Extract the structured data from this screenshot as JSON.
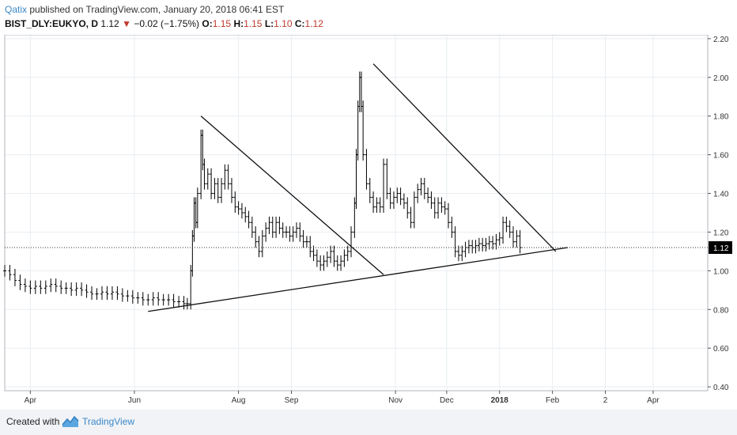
{
  "header": {
    "user": "Qatix",
    "published": "published on TradingView.com, January 20, 2018 06:41 EST",
    "symbol": "BIST_DLY:EUKYO, D",
    "last": "1.12",
    "change_arrow": "▼",
    "change": "−0.02 (−1.75%)",
    "o_label": "O:",
    "o_val": "1.15",
    "h_label": "H:",
    "h_val": "1.15",
    "l_label": "L:",
    "l_val": "1.10",
    "c_label": "C:",
    "c_val": "1.12"
  },
  "footer": {
    "created": "Created with",
    "brand": "TradingView",
    "logo_icon": "tradingview-logo-icon"
  },
  "colors": {
    "accent": "#3a86c8",
    "down": "#c0392b",
    "bars": "#000000",
    "grid": "#e9edf2"
  },
  "chart_data": {
    "type": "ohlc",
    "ylim": [
      0.38,
      2.22
    ],
    "y_ticks": [
      "2.20",
      "2.00",
      "1.80",
      "1.60",
      "1.40",
      "1.20",
      "1.12",
      "1.00",
      "0.80",
      "0.60",
      "0.40"
    ],
    "x_ticks": [
      {
        "label": "Apr",
        "d": 15
      },
      {
        "label": "Jun",
        "d": 76
      },
      {
        "label": "Aug",
        "d": 137
      },
      {
        "label": "Sep",
        "d": 168
      },
      {
        "label": "Nov",
        "d": 229
      },
      {
        "label": "Dec",
        "d": 259
      },
      {
        "label": "2018",
        "d": 290
      },
      {
        "label": "Feb",
        "d": 321
      },
      {
        "label": "2",
        "d": 352
      },
      {
        "label": "Apr",
        "d": 380
      }
    ],
    "x_domain": [
      0,
      412
    ],
    "last_price": 1.12,
    "last_label": "1.12",
    "trendlines": [
      {
        "name": "support",
        "x1": 84,
        "y1": 0.79,
        "x2": 330,
        "y2": 1.12
      },
      {
        "name": "resistance-1",
        "x1": 115,
        "y1": 1.8,
        "x2": 222,
        "y2": 0.98
      },
      {
        "name": "resistance-2",
        "x1": 216,
        "y1": 2.07,
        "x2": 323,
        "y2": 1.1
      }
    ],
    "series_note": "daily OHLC, approx. closes",
    "closes": [
      {
        "d": 0,
        "c": 1.0
      },
      {
        "d": 3,
        "c": 0.98
      },
      {
        "d": 6,
        "c": 0.95
      },
      {
        "d": 9,
        "c": 0.93
      },
      {
        "d": 12,
        "c": 0.92
      },
      {
        "d": 15,
        "c": 0.91
      },
      {
        "d": 18,
        "c": 0.92
      },
      {
        "d": 21,
        "c": 0.91
      },
      {
        "d": 24,
        "c": 0.92
      },
      {
        "d": 27,
        "c": 0.93
      },
      {
        "d": 30,
        "c": 0.92
      },
      {
        "d": 33,
        "c": 0.91
      },
      {
        "d": 36,
        "c": 0.91
      },
      {
        "d": 39,
        "c": 0.9
      },
      {
        "d": 42,
        "c": 0.91
      },
      {
        "d": 45,
        "c": 0.9
      },
      {
        "d": 48,
        "c": 0.89
      },
      {
        "d": 51,
        "c": 0.88
      },
      {
        "d": 54,
        "c": 0.88
      },
      {
        "d": 57,
        "c": 0.89
      },
      {
        "d": 60,
        "c": 0.88
      },
      {
        "d": 63,
        "c": 0.89
      },
      {
        "d": 66,
        "c": 0.88
      },
      {
        "d": 69,
        "c": 0.87
      },
      {
        "d": 72,
        "c": 0.87
      },
      {
        "d": 75,
        "c": 0.86
      },
      {
        "d": 78,
        "c": 0.86
      },
      {
        "d": 81,
        "c": 0.85
      },
      {
        "d": 84,
        "c": 0.85
      },
      {
        "d": 87,
        "c": 0.86
      },
      {
        "d": 90,
        "c": 0.85
      },
      {
        "d": 93,
        "c": 0.85
      },
      {
        "d": 96,
        "c": 0.85
      },
      {
        "d": 99,
        "c": 0.84
      },
      {
        "d": 102,
        "c": 0.84
      },
      {
        "d": 105,
        "c": 0.83
      },
      {
        "d": 107,
        "c": 0.83
      },
      {
        "d": 109,
        "c": 1.0
      },
      {
        "d": 110,
        "c": 1.18
      },
      {
        "d": 111,
        "c": 1.35
      },
      {
        "d": 112,
        "c": 1.25
      },
      {
        "d": 113,
        "c": 1.4
      },
      {
        "d": 115,
        "c": 1.7
      },
      {
        "d": 116,
        "c": 1.55
      },
      {
        "d": 117,
        "c": 1.45
      },
      {
        "d": 119,
        "c": 1.5
      },
      {
        "d": 121,
        "c": 1.4
      },
      {
        "d": 123,
        "c": 1.45
      },
      {
        "d": 125,
        "c": 1.38
      },
      {
        "d": 127,
        "c": 1.45
      },
      {
        "d": 129,
        "c": 1.52
      },
      {
        "d": 131,
        "c": 1.45
      },
      {
        "d": 133,
        "c": 1.38
      },
      {
        "d": 135,
        "c": 1.33
      },
      {
        "d": 137,
        "c": 1.32
      },
      {
        "d": 139,
        "c": 1.3
      },
      {
        "d": 141,
        "c": 1.28
      },
      {
        "d": 143,
        "c": 1.25
      },
      {
        "d": 145,
        "c": 1.2
      },
      {
        "d": 147,
        "c": 1.15
      },
      {
        "d": 149,
        "c": 1.1
      },
      {
        "d": 151,
        "c": 1.18
      },
      {
        "d": 153,
        "c": 1.22
      },
      {
        "d": 155,
        "c": 1.25
      },
      {
        "d": 157,
        "c": 1.2
      },
      {
        "d": 159,
        "c": 1.25
      },
      {
        "d": 161,
        "c": 1.22
      },
      {
        "d": 163,
        "c": 1.2
      },
      {
        "d": 165,
        "c": 1.2
      },
      {
        "d": 167,
        "c": 1.18
      },
      {
        "d": 169,
        "c": 1.2
      },
      {
        "d": 171,
        "c": 1.22
      },
      {
        "d": 173,
        "c": 1.18
      },
      {
        "d": 175,
        "c": 1.15
      },
      {
        "d": 177,
        "c": 1.15
      },
      {
        "d": 179,
        "c": 1.1
      },
      {
        "d": 181,
        "c": 1.08
      },
      {
        "d": 183,
        "c": 1.05
      },
      {
        "d": 185,
        "c": 1.03
      },
      {
        "d": 187,
        "c": 1.05
      },
      {
        "d": 189,
        "c": 1.07
      },
      {
        "d": 191,
        "c": 1.1
      },
      {
        "d": 193,
        "c": 1.05
      },
      {
        "d": 195,
        "c": 1.03
      },
      {
        "d": 197,
        "c": 1.05
      },
      {
        "d": 199,
        "c": 1.08
      },
      {
        "d": 201,
        "c": 1.1
      },
      {
        "d": 203,
        "c": 1.2
      },
      {
        "d": 205,
        "c": 1.35
      },
      {
        "d": 206,
        "c": 1.6
      },
      {
        "d": 207,
        "c": 1.85
      },
      {
        "d": 208,
        "c": 2.0
      },
      {
        "d": 209,
        "c": 1.85
      },
      {
        "d": 210,
        "c": 1.6
      },
      {
        "d": 212,
        "c": 1.45
      },
      {
        "d": 214,
        "c": 1.38
      },
      {
        "d": 216,
        "c": 1.33
      },
      {
        "d": 218,
        "c": 1.35
      },
      {
        "d": 220,
        "c": 1.33
      },
      {
        "d": 222,
        "c": 1.55
      },
      {
        "d": 224,
        "c": 1.4
      },
      {
        "d": 226,
        "c": 1.35
      },
      {
        "d": 228,
        "c": 1.38
      },
      {
        "d": 230,
        "c": 1.4
      },
      {
        "d": 232,
        "c": 1.37
      },
      {
        "d": 234,
        "c": 1.35
      },
      {
        "d": 236,
        "c": 1.3
      },
      {
        "d": 238,
        "c": 1.25
      },
      {
        "d": 240,
        "c": 1.38
      },
      {
        "d": 242,
        "c": 1.42
      },
      {
        "d": 244,
        "c": 1.45
      },
      {
        "d": 246,
        "c": 1.4
      },
      {
        "d": 248,
        "c": 1.38
      },
      {
        "d": 250,
        "c": 1.35
      },
      {
        "d": 252,
        "c": 1.3
      },
      {
        "d": 254,
        "c": 1.35
      },
      {
        "d": 256,
        "c": 1.33
      },
      {
        "d": 258,
        "c": 1.32
      },
      {
        "d": 260,
        "c": 1.25
      },
      {
        "d": 262,
        "c": 1.2
      },
      {
        "d": 264,
        "c": 1.1
      },
      {
        "d": 266,
        "c": 1.08
      },
      {
        "d": 268,
        "c": 1.1
      },
      {
        "d": 270,
        "c": 1.12
      },
      {
        "d": 272,
        "c": 1.13
      },
      {
        "d": 274,
        "c": 1.12
      },
      {
        "d": 276,
        "c": 1.13
      },
      {
        "d": 278,
        "c": 1.14
      },
      {
        "d": 280,
        "c": 1.13
      },
      {
        "d": 282,
        "c": 1.14
      },
      {
        "d": 284,
        "c": 1.15
      },
      {
        "d": 286,
        "c": 1.14
      },
      {
        "d": 288,
        "c": 1.16
      },
      {
        "d": 290,
        "c": 1.17
      },
      {
        "d": 292,
        "c": 1.25
      },
      {
        "d": 294,
        "c": 1.23
      },
      {
        "d": 296,
        "c": 1.2
      },
      {
        "d": 298,
        "c": 1.15
      },
      {
        "d": 300,
        "c": 1.18
      },
      {
        "d": 302,
        "c": 1.12
      }
    ]
  }
}
